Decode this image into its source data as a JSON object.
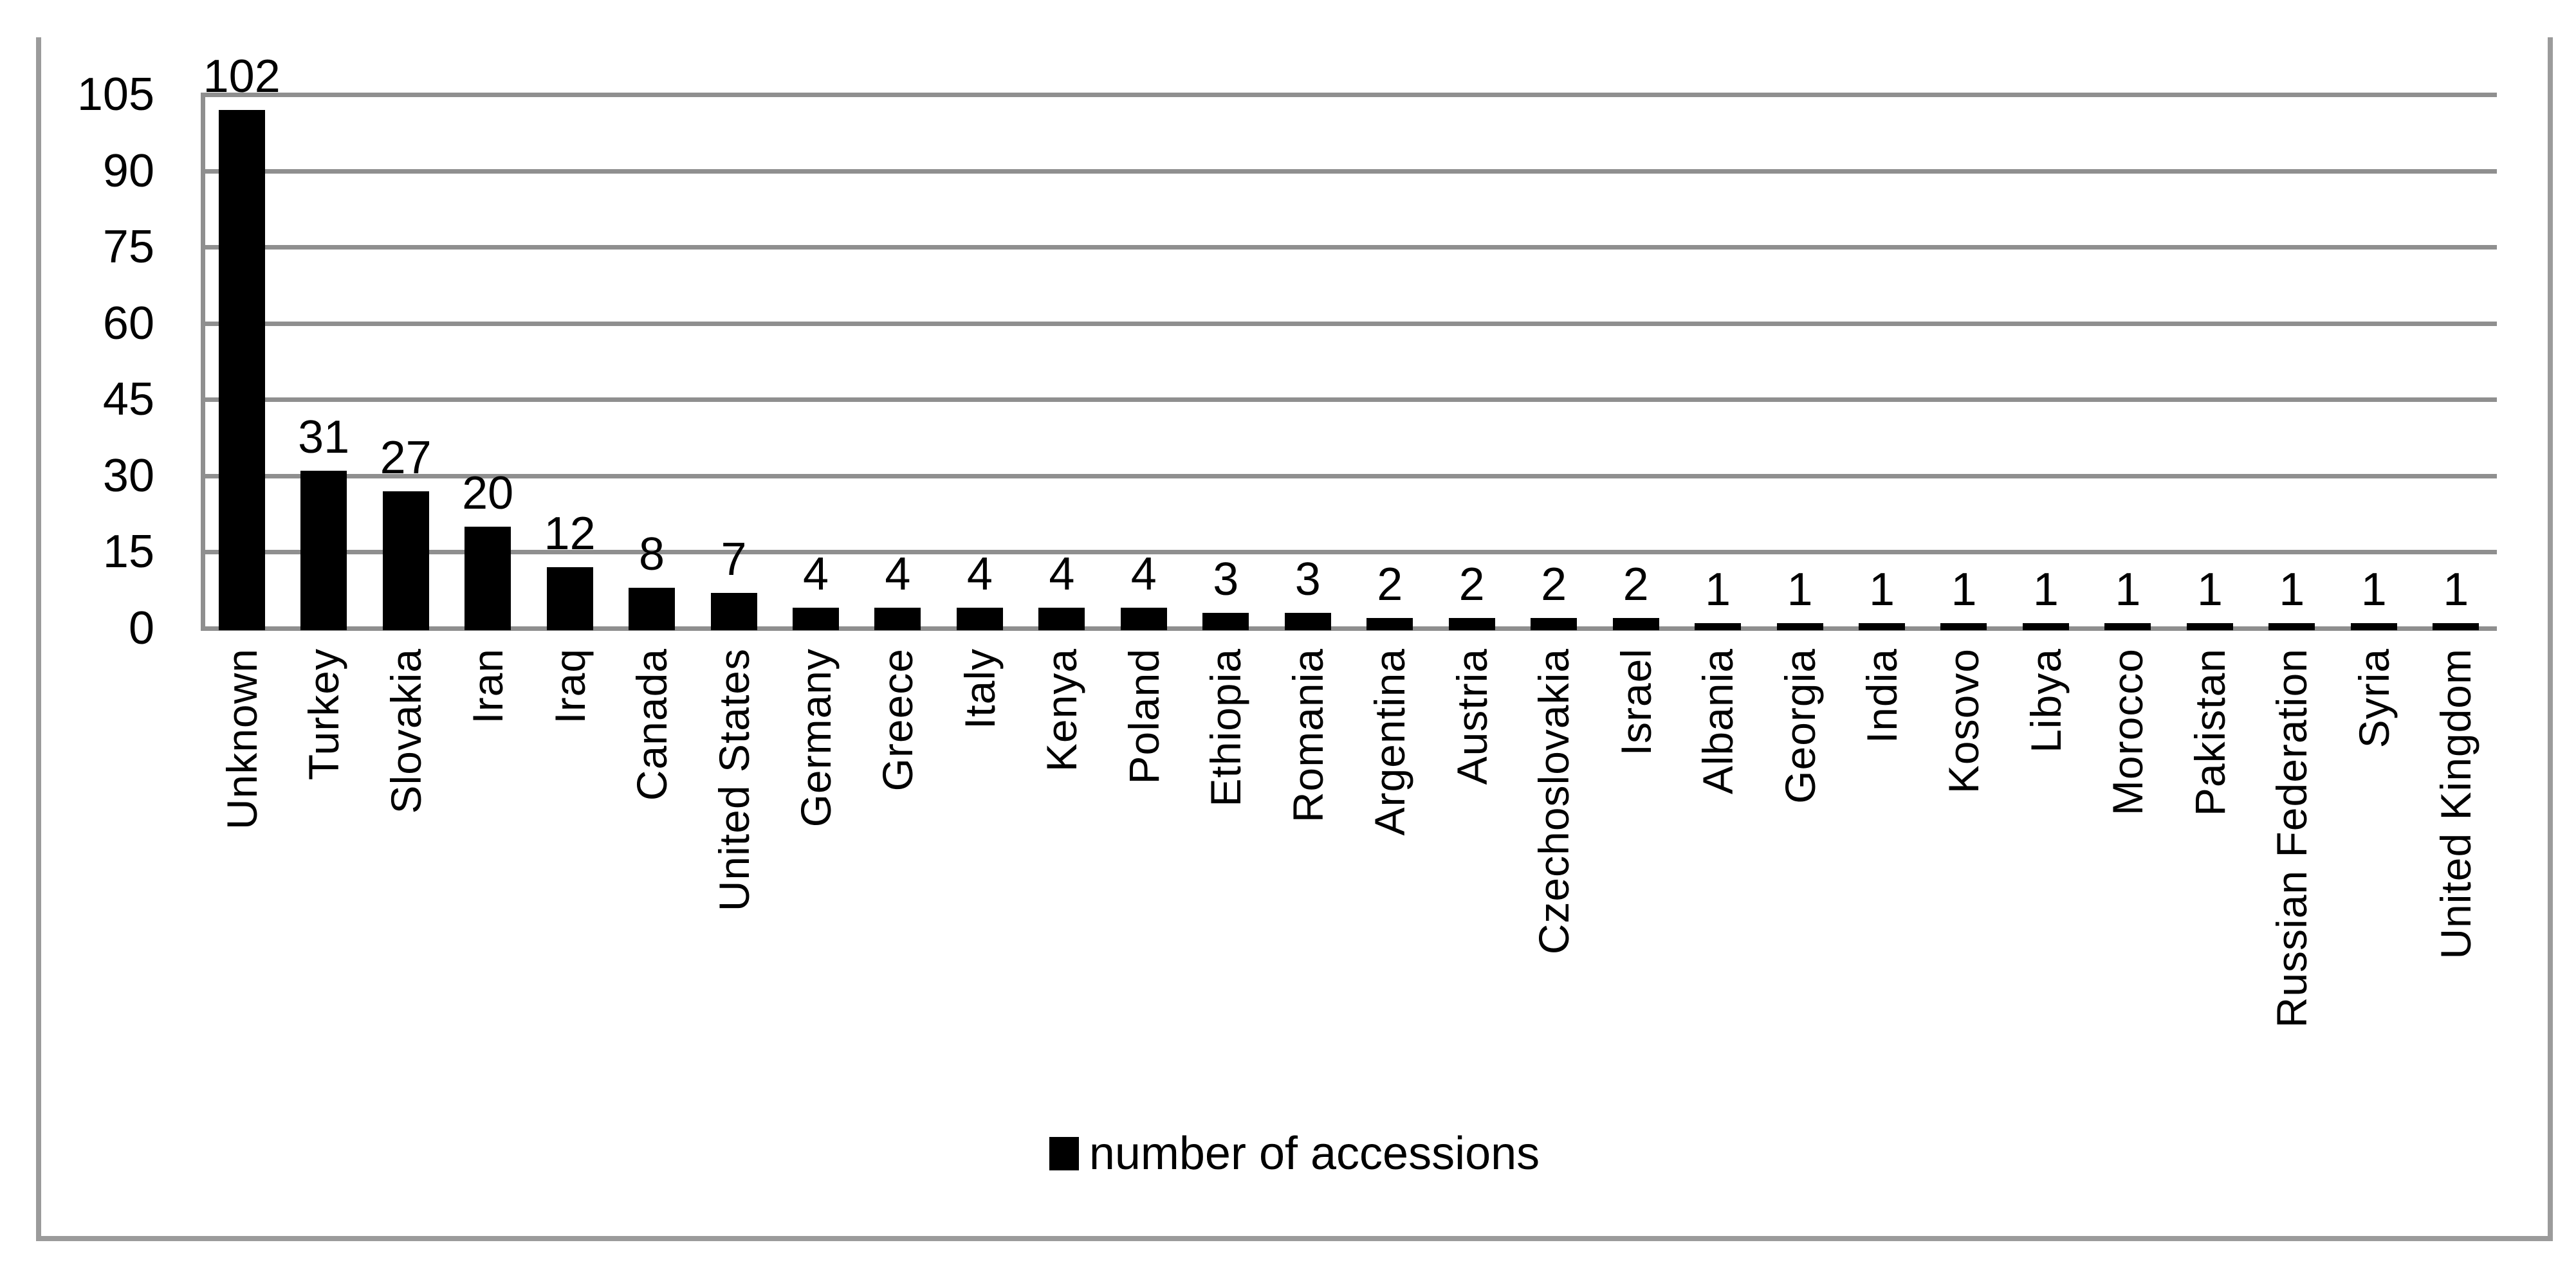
{
  "chart_data": {
    "type": "bar",
    "title": "",
    "xlabel": "",
    "ylabel": "",
    "categories": [
      "Unknown",
      "Turkey",
      "Slovakia",
      "Iran",
      "Iraq",
      "Canada",
      "United States",
      "Germany",
      "Greece",
      "Italy",
      "Kenya",
      "Poland",
      "Ethiopia",
      "Romania",
      "Argentina",
      "Austria",
      "Czechoslovakia",
      "Israel",
      "Albania",
      "Georgia",
      "India",
      "Kosovo",
      "Libya",
      "Morocco",
      "Pakistan",
      "Russian Federation",
      "Syria",
      "United Kingdom"
    ],
    "values": [
      102,
      31,
      27,
      20,
      12,
      8,
      7,
      4,
      4,
      4,
      4,
      4,
      3,
      3,
      2,
      2,
      2,
      2,
      1,
      1,
      1,
      1,
      1,
      1,
      1,
      1,
      1,
      1
    ],
    "series": [
      {
        "name": "number of accessions",
        "values": [
          102,
          31,
          27,
          20,
          12,
          8,
          7,
          4,
          4,
          4,
          4,
          4,
          3,
          3,
          2,
          2,
          2,
          2,
          1,
          1,
          1,
          1,
          1,
          1,
          1,
          1,
          1,
          1
        ]
      }
    ],
    "data_labels": true,
    "yticks": [
      0,
      15,
      30,
      45,
      60,
      75,
      90,
      105
    ],
    "ylim": [
      0,
      105
    ],
    "grid": true,
    "legend": [
      "number of accessions"
    ],
    "legend_position": "bottom",
    "bar_color": "#000000",
    "gridline_color": "#8f8f8f",
    "frame_color": "#9b9b9b",
    "text_color": "#000000",
    "background": "#ffffff"
  }
}
